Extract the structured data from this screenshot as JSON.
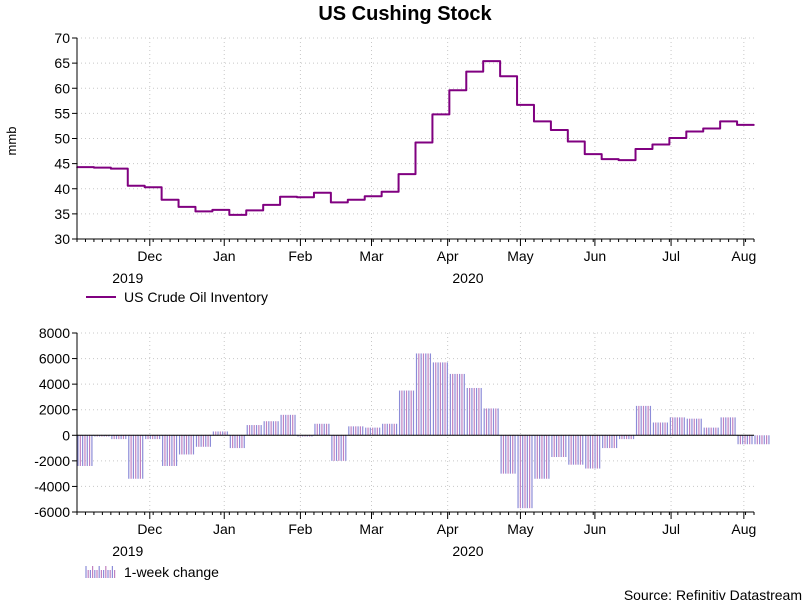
{
  "chart_data": [
    {
      "type": "line",
      "title": "US Cushing Stock",
      "ylabel": "mmb",
      "ylim": [
        30,
        70
      ],
      "yticks": [
        30,
        35,
        40,
        45,
        50,
        55,
        60,
        65,
        70
      ],
      "xlim": [
        0,
        40
      ],
      "month_ticks": [
        {
          "label": "Dec",
          "x": 4.3
        },
        {
          "label": "Jan",
          "x": 8.7
        },
        {
          "label": "Feb",
          "x": 13.2
        },
        {
          "label": "Mar",
          "x": 17.4
        },
        {
          "label": "Apr",
          "x": 21.9
        },
        {
          "label": "May",
          "x": 26.2
        },
        {
          "label": "Jun",
          "x": 30.6
        },
        {
          "label": "Jul",
          "x": 35.1
        },
        {
          "label": "Aug",
          "x": 39.4
        }
      ],
      "years": [
        {
          "label": "2019",
          "x": 3.0
        },
        {
          "label": "2020",
          "x": 23.1
        }
      ],
      "grid": true,
      "legend": "bottom-left",
      "series": [
        {
          "name": "US Crude Oil Inventory",
          "color": "#800080",
          "x": [
            0,
            1,
            2,
            3,
            4,
            5,
            6,
            7,
            8,
            9,
            10,
            11,
            12,
            13,
            14,
            15,
            16,
            17,
            18,
            19,
            20,
            21,
            22,
            23,
            24,
            25,
            26,
            27,
            28,
            29,
            30,
            31,
            32,
            33,
            34,
            35,
            36,
            37,
            38,
            39,
            40
          ],
          "values": [
            44.3,
            44.2,
            44.0,
            40.6,
            40.3,
            37.8,
            36.4,
            35.5,
            35.8,
            34.8,
            35.7,
            36.8,
            38.4,
            38.3,
            39.2,
            37.3,
            37.8,
            38.5,
            39.4,
            42.9,
            49.2,
            54.8,
            59.6,
            63.3,
            65.4,
            62.4,
            56.7,
            53.4,
            51.7,
            49.4,
            46.9,
            45.9,
            45.7,
            47.9,
            48.8,
            50.1,
            51.4,
            52.0,
            53.4,
            52.7,
            52.7
          ]
        }
      ]
    },
    {
      "type": "bar",
      "ylim": [
        -6000,
        8000
      ],
      "yticks": [
        -6000,
        -4000,
        -2000,
        0,
        2000,
        4000,
        6000,
        8000
      ],
      "xlim": [
        0,
        40
      ],
      "month_ticks": [
        {
          "label": "Dec",
          "x": 4.3
        },
        {
          "label": "Jan",
          "x": 8.7
        },
        {
          "label": "Feb",
          "x": 13.2
        },
        {
          "label": "Mar",
          "x": 17.4
        },
        {
          "label": "Apr",
          "x": 21.9
        },
        {
          "label": "May",
          "x": 26.2
        },
        {
          "label": "Jun",
          "x": 30.6
        },
        {
          "label": "Jul",
          "x": 35.1
        },
        {
          "label": "Aug",
          "x": 39.4
        }
      ],
      "years": [
        {
          "label": "2019",
          "x": 3.0
        },
        {
          "label": "2020",
          "x": 23.1
        }
      ],
      "grid": true,
      "legend": "bottom-left",
      "series": [
        {
          "name": "1-week change",
          "color_a": "#8c8cd8",
          "color_b": "#c080c0",
          "x": [
            0,
            1,
            2,
            3,
            4,
            5,
            6,
            7,
            8,
            9,
            10,
            11,
            12,
            13,
            14,
            15,
            16,
            17,
            18,
            19,
            20,
            21,
            22,
            23,
            24,
            25,
            26,
            27,
            28,
            29,
            30,
            31,
            32,
            33,
            34,
            35,
            36,
            37,
            38,
            39,
            40
          ],
          "values": [
            -2400,
            -100,
            -300,
            -3400,
            -300,
            -2400,
            -1500,
            -900,
            300,
            -1000,
            800,
            1100,
            1600,
            -100,
            900,
            -2000,
            700,
            600,
            900,
            3500,
            6400,
            5700,
            4800,
            3700,
            2100,
            -3000,
            -5700,
            -3400,
            -1700,
            -2300,
            -2600,
            -1000,
            -300,
            2300,
            1000,
            1400,
            1300,
            600,
            1400,
            -700,
            -700
          ]
        }
      ]
    }
  ],
  "source": "Source: Refinitiv Datastream"
}
